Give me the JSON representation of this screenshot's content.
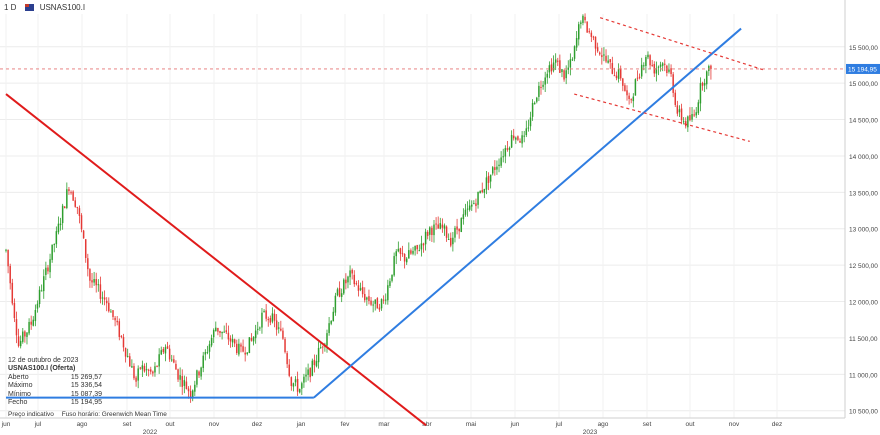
{
  "header": {
    "interval": "1 D",
    "symbol": "USNAS100.I"
  },
  "info_panel": {
    "date": "12 de outubro de 2023",
    "instrument": "USNAS100.I (Oferta)",
    "rows": [
      {
        "label": "Aberto",
        "value": "15 269,57"
      },
      {
        "label": "Máximo",
        "value": "15 336,54"
      },
      {
        "label": "Mínimo",
        "value": "15 087,39"
      },
      {
        "label": "Fecho",
        "value": "15 194,95"
      }
    ]
  },
  "footer": {
    "price_type": "Preço indicativo",
    "timezone": "Fuso horário: Greenwich Mean Time"
  },
  "colors": {
    "up": "#2e9e2e",
    "down": "#e53935",
    "trend_red": "#e01b1b",
    "trend_blue": "#2f7de1",
    "channel": "#e53935",
    "price_label": "#2f7de1"
  },
  "chart_data": {
    "type": "candlestick",
    "ylim": [
      10400,
      15950
    ],
    "y_ticks": [
      10500,
      11000,
      11500,
      12000,
      12500,
      13000,
      13500,
      14000,
      14500,
      15000,
      15500
    ],
    "y_tick_labels": [
      "10 500,00",
      "11 000,00",
      "11 500,00",
      "12 000,00",
      "12 500,00",
      "13 000,00",
      "13 500,00",
      "14 000,00",
      "14 500,00",
      "15 000,00",
      "15 500,00"
    ],
    "x_tick_labels": [
      "jun",
      "jul",
      "ago",
      "set",
      "out",
      "nov",
      "dez",
      "jan",
      "fev",
      "mar",
      "abr",
      "mai",
      "jun",
      "jul",
      "ago",
      "set",
      "out",
      "nov",
      "dez"
    ],
    "year_labels": [
      "2022",
      "2023"
    ],
    "last_price": 15194.95,
    "last_price_label": "15 194,95",
    "anchors": [
      [
        0,
        12700
      ],
      [
        6,
        11400
      ],
      [
        12,
        11700
      ],
      [
        18,
        12300
      ],
      [
        24,
        12900
      ],
      [
        30,
        13600
      ],
      [
        34,
        13300
      ],
      [
        40,
        12300
      ],
      [
        48,
        12000
      ],
      [
        55,
        11500
      ],
      [
        62,
        10900
      ],
      [
        64,
        11100
      ],
      [
        70,
        11000
      ],
      [
        76,
        11400
      ],
      [
        82,
        11000
      ],
      [
        88,
        10750
      ],
      [
        94,
        11200
      ],
      [
        100,
        11650
      ],
      [
        106,
        11500
      ],
      [
        112,
        11300
      ],
      [
        117,
        11450
      ],
      [
        122,
        11800
      ],
      [
        126,
        11800
      ],
      [
        132,
        11500
      ],
      [
        136,
        10900
      ],
      [
        140,
        10800
      ],
      [
        146,
        11100
      ],
      [
        152,
        11500
      ],
      [
        158,
        12100
      ],
      [
        164,
        12350
      ],
      [
        170,
        12100
      ],
      [
        176,
        11950
      ],
      [
        180,
        12000
      ],
      [
        186,
        12650
      ],
      [
        190,
        12600
      ],
      [
        196,
        12700
      ],
      [
        202,
        13000
      ],
      [
        208,
        13000
      ],
      [
        212,
        12850
      ],
      [
        218,
        13150
      ],
      [
        224,
        13400
      ],
      [
        230,
        13700
      ],
      [
        236,
        14000
      ],
      [
        242,
        14300
      ],
      [
        247,
        14200
      ],
      [
        252,
        14800
      ],
      [
        258,
        15200
      ],
      [
        262,
        15300
      ],
      [
        266,
        15100
      ],
      [
        270,
        15300
      ],
      [
        274,
        15900
      ],
      [
        278,
        15700
      ],
      [
        282,
        15500
      ],
      [
        286,
        15300
      ],
      [
        290,
        15150
      ],
      [
        293,
        15100
      ],
      [
        297,
        14700
      ],
      [
        301,
        15100
      ],
      [
        305,
        15400
      ],
      [
        309,
        15200
      ],
      [
        313,
        15300
      ],
      [
        317,
        15100
      ],
      [
        320,
        14600
      ],
      [
        324,
        14450
      ],
      [
        328,
        14550
      ],
      [
        332,
        15050
      ],
      [
        336,
        15195
      ]
    ],
    "trend_lines": [
      {
        "name": "downtrend",
        "color": "red",
        "points": [
          [
            "2022-06-01",
            14850
          ],
          [
            "2023-03-20",
            10300
          ]
        ]
      },
      {
        "name": "support",
        "color": "blue",
        "points": [
          [
            "2022-06-01",
            10680
          ],
          [
            "2023-01-01",
            10680
          ]
        ]
      },
      {
        "name": "uptrend",
        "color": "blue",
        "points": [
          [
            "2023-01-01",
            10680
          ],
          [
            "2023-10-25",
            15750
          ]
        ]
      },
      {
        "name": "channel-top",
        "color": "red-dotted",
        "points": [
          [
            "2023-07-19",
            15900
          ],
          [
            "2023-11-10",
            15180
          ]
        ]
      },
      {
        "name": "channel-bottom",
        "color": "red-dotted",
        "points": [
          [
            "2023-07-01",
            14850
          ],
          [
            "2023-10-31",
            14200
          ]
        ]
      },
      {
        "name": "last-price",
        "color": "red-dotted",
        "points": [
          [
            "2022-06-01",
            15195
          ],
          [
            "2023-12-31",
            15195
          ]
        ]
      }
    ]
  }
}
